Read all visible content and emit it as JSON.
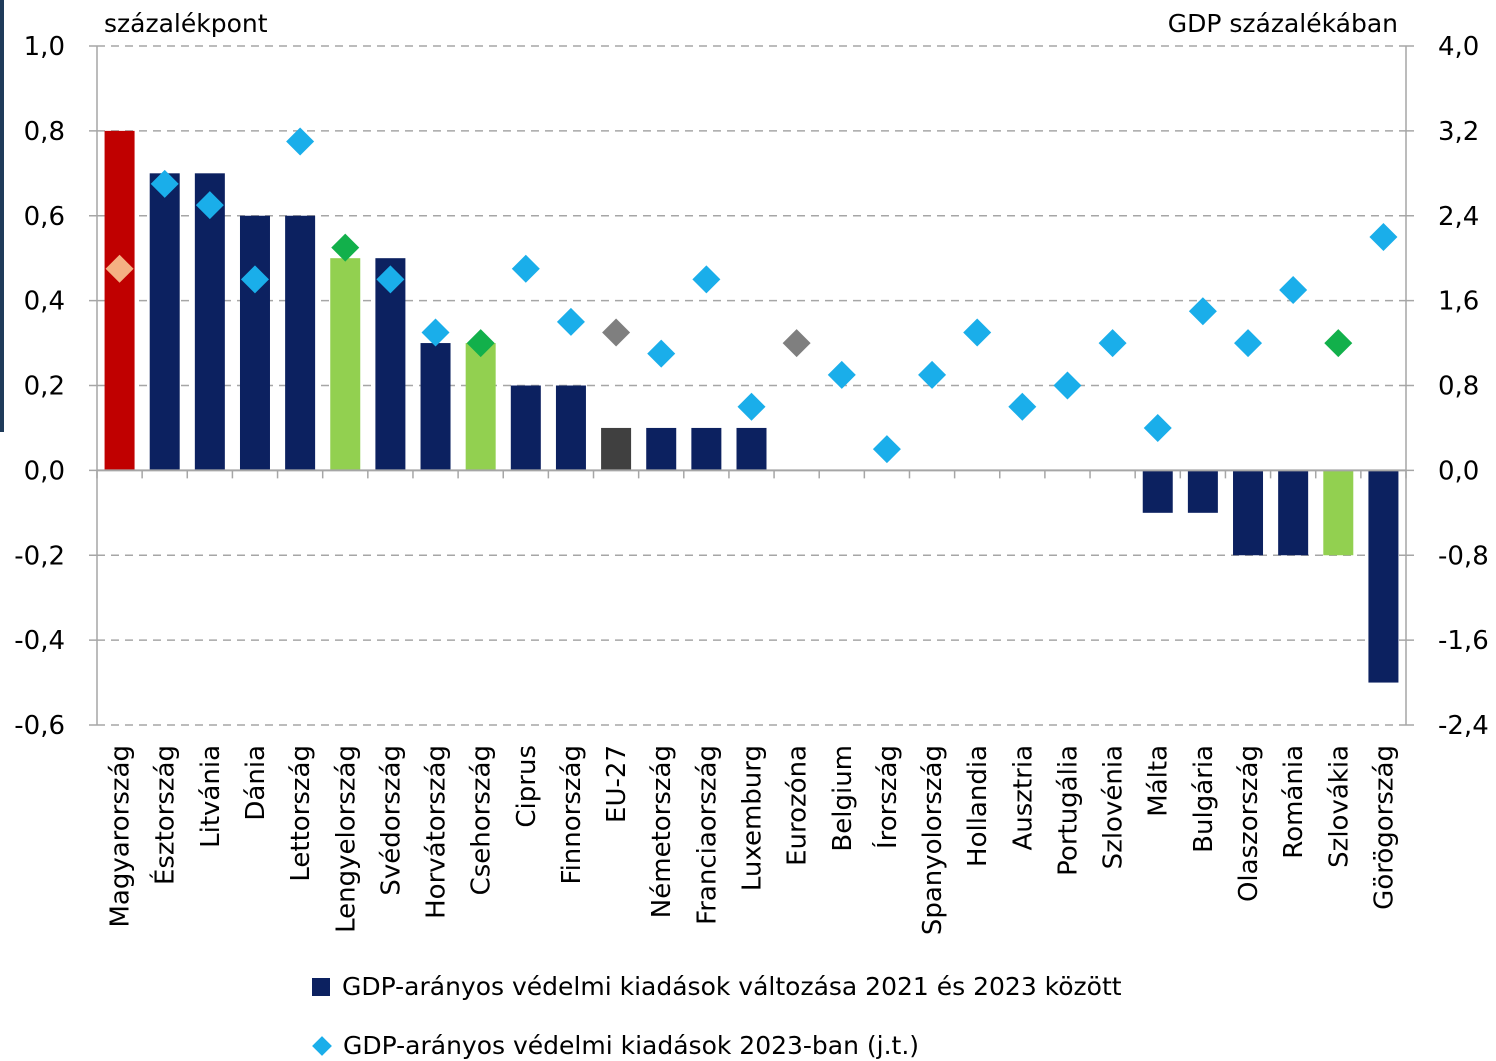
{
  "chart_data": {
    "type": "bar",
    "left_unit_label": "százalékpont",
    "right_unit_label": "GDP százalékában",
    "categories": [
      "Magyarország",
      "Észtország",
      "Litvánia",
      "Dánia",
      "Lettország",
      "Lengyelország",
      "Svédország",
      "Horvátország",
      "Csehország",
      "Ciprus",
      "Finnország",
      "EU-27",
      "Németország",
      "Franciaország",
      "Luxemburg",
      "Eurozóna",
      "Belgium",
      "Írország",
      "Spanyolország",
      "Hollandia",
      "Ausztria",
      "Portugália",
      "Szlovénia",
      "Málta",
      "Bulgária",
      "Olaszország",
      "Románia",
      "Szlovákia",
      "Görögország"
    ],
    "y_left": {
      "lim": [
        -0.6,
        1.0
      ],
      "ticks": [
        "1,0",
        "0,8",
        "0,6",
        "0,4",
        "0,2",
        "0,0",
        "-0,2",
        "-0,4",
        "-0,6"
      ],
      "tick_values": [
        1.0,
        0.8,
        0.6,
        0.4,
        0.2,
        0.0,
        -0.2,
        -0.4,
        -0.6
      ]
    },
    "y_right": {
      "lim": [
        -2.4,
        4.0
      ],
      "ticks": [
        "4,0",
        "3,2",
        "2,4",
        "1,6",
        "0,8",
        "0,0",
        "-0,8",
        "-1,6",
        "-2,4"
      ],
      "tick_values": [
        4.0,
        3.2,
        2.4,
        1.6,
        0.8,
        0.0,
        -0.8,
        -1.6,
        -2.4
      ]
    },
    "grid": true,
    "legend_position": "bottom",
    "series": [
      {
        "name": "GDP-arányos védelmi kiadások változása 2021 és 2023 között",
        "type": "bar",
        "axis": "left",
        "color": "#0c2160",
        "values": [
          0.8,
          0.7,
          0.7,
          0.6,
          0.6,
          0.5,
          0.5,
          0.3,
          0.3,
          0.2,
          0.2,
          0.1,
          0.1,
          0.1,
          0.1,
          null,
          null,
          null,
          null,
          null,
          null,
          null,
          null,
          -0.1,
          -0.1,
          -0.2,
          -0.2,
          -0.2,
          -0.5
        ],
        "colors": [
          "#c00000",
          "#0c2160",
          "#0c2160",
          "#0c2160",
          "#0c2160",
          "#92d050",
          "#0c2160",
          "#0c2160",
          "#92d050",
          "#0c2160",
          "#0c2160",
          "#404040",
          "#0c2160",
          "#0c2160",
          "#0c2160",
          null,
          null,
          null,
          null,
          null,
          null,
          null,
          null,
          "#0c2160",
          "#0c2160",
          "#0c2160",
          "#0c2160",
          "#92d050",
          "#0c2160"
        ]
      },
      {
        "name": "GDP-arányos védelmi kiadások 2023-ban (j.t.)",
        "type": "scatter",
        "axis": "right",
        "color": "#1aaeea",
        "values": [
          1.9,
          2.7,
          2.5,
          1.8,
          3.1,
          2.1,
          1.8,
          1.3,
          1.2,
          1.9,
          1.4,
          1.3,
          1.1,
          1.8,
          0.6,
          1.2,
          0.9,
          0.2,
          0.9,
          1.3,
          0.6,
          0.8,
          1.2,
          0.4,
          1.5,
          1.2,
          1.7,
          1.2,
          2.2
        ],
        "colors": [
          "#f4b183",
          "#1aaeea",
          "#1aaeea",
          "#1aaeea",
          "#1aaeea",
          "#12b04b",
          "#1aaeea",
          "#1aaeea",
          "#12b04b",
          "#1aaeea",
          "#1aaeea",
          "#7f7f7f",
          "#1aaeea",
          "#1aaeea",
          "#1aaeea",
          "#7f7f7f",
          "#1aaeea",
          "#1aaeea",
          "#1aaeea",
          "#1aaeea",
          "#1aaeea",
          "#1aaeea",
          "#1aaeea",
          "#1aaeea",
          "#1aaeea",
          "#1aaeea",
          "#1aaeea",
          "#12b04b",
          "#1aaeea"
        ]
      }
    ]
  }
}
